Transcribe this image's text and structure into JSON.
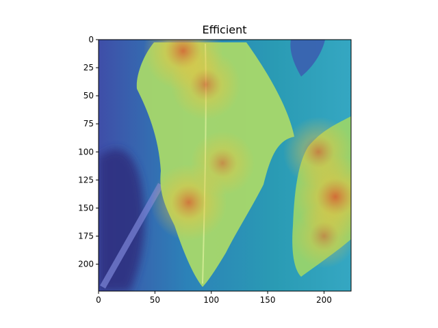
{
  "chart_data": {
    "type": "heatmap",
    "title": "Efficient",
    "xlabel": "",
    "ylabel": "",
    "xlim": [
      0,
      224
    ],
    "ylim": [
      224,
      0
    ],
    "xticks": [
      0,
      50,
      100,
      150,
      200
    ],
    "yticks": [
      0,
      25,
      50,
      75,
      100,
      125,
      150,
      175,
      200
    ],
    "grid": false,
    "colormap": "jet",
    "hotspots": [
      {
        "x": 75,
        "y": 10,
        "intensity": 0.85
      },
      {
        "x": 95,
        "y": 40,
        "intensity": 0.7
      },
      {
        "x": 80,
        "y": 145,
        "intensity": 0.8
      },
      {
        "x": 110,
        "y": 110,
        "intensity": 0.6
      },
      {
        "x": 210,
        "y": 140,
        "intensity": 0.9
      },
      {
        "x": 195,
        "y": 100,
        "intensity": 0.7
      },
      {
        "x": 200,
        "y": 175,
        "intensity": 0.6
      }
    ]
  },
  "colors": {
    "background": "#ffffff",
    "axes": "#000000",
    "leaf": "#a6d46a",
    "foliage": "#2f8fbf",
    "shadow": "#3b3f9c"
  }
}
